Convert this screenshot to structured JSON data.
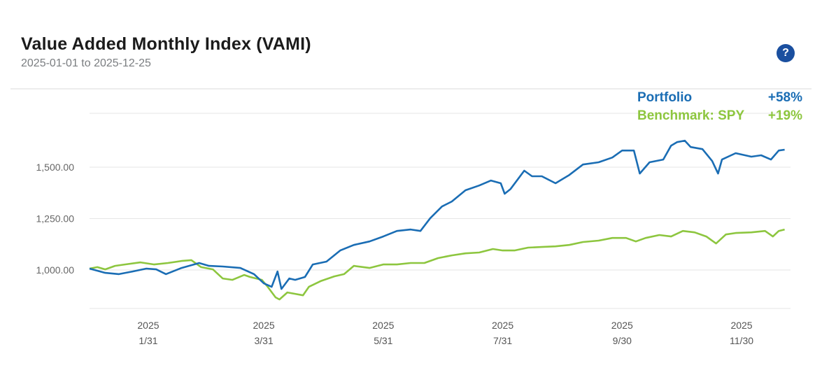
{
  "header": {
    "title": "Value Added Monthly Index (VAMI)",
    "subtitle": "2025-01-01 to 2025-12-25",
    "help_icon": "question-circle-icon",
    "help_label": "?"
  },
  "legend": [
    {
      "name": "Portfolio",
      "value": "+58%",
      "color": "#1a6db4"
    },
    {
      "name": "Benchmark: SPY",
      "value": "+19%",
      "color": "#8dc63f"
    }
  ],
  "chart_data": {
    "type": "line",
    "title": "Value Added Monthly Index (VAMI)",
    "xlabel": "",
    "ylabel": "",
    "x_units": "days since 2025-01-01",
    "xlim": [
      0,
      358
    ],
    "ylim": [
      813,
      1762
    ],
    "grid": true,
    "legend_position": "top-right",
    "yticks": [
      {
        "value": 1000,
        "label": "1,000.00"
      },
      {
        "value": 1250,
        "label": "1,250.00"
      },
      {
        "value": 1500,
        "label": "1,500.00"
      }
    ],
    "xticks": [
      {
        "value": 30,
        "year": "2025",
        "label": "1/31"
      },
      {
        "value": 89,
        "year": "2025",
        "label": "3/31"
      },
      {
        "value": 150,
        "year": "2025",
        "label": "5/31"
      },
      {
        "value": 211,
        "year": "2025",
        "label": "7/31"
      },
      {
        "value": 272,
        "year": "2025",
        "label": "9/30"
      },
      {
        "value": 333,
        "year": "2025",
        "label": "11/30"
      }
    ],
    "series": [
      {
        "name": "Portfolio",
        "color": "#1a6db4",
        "x": [
          0,
          8,
          15,
          22,
          29,
          34,
          39,
          47,
          56,
          61,
          68,
          77,
          84,
          89,
          93,
          96,
          98,
          102,
          105,
          110,
          114,
          121,
          128,
          135,
          143,
          150,
          157,
          164,
          169,
          174,
          180,
          185,
          192,
          199,
          205,
          210,
          212,
          215,
          222,
          226,
          231,
          238,
          245,
          252,
          260,
          267,
          272,
          278,
          281,
          286,
          293,
          297,
          300,
          304,
          307,
          313,
          318,
          321,
          323,
          330,
          338,
          343,
          348,
          352,
          355
        ],
        "y": [
          1007,
          986,
          980,
          993,
          1007,
          1003,
          980,
          1010,
          1034,
          1020,
          1017,
          1010,
          980,
          935,
          918,
          993,
          908,
          959,
          952,
          966,
          1027,
          1041,
          1095,
          1122,
          1139,
          1163,
          1190,
          1197,
          1190,
          1252,
          1309,
          1333,
          1388,
          1411,
          1435,
          1422,
          1371,
          1394,
          1483,
          1456,
          1456,
          1422,
          1462,
          1513,
          1524,
          1547,
          1581,
          1581,
          1469,
          1524,
          1537,
          1605,
          1622,
          1629,
          1598,
          1588,
          1530,
          1469,
          1537,
          1568,
          1551,
          1558,
          1537,
          1581,
          1585
        ]
      },
      {
        "name": "Benchmark: SPY",
        "color": "#8dc63f",
        "x": [
          0,
          4,
          8,
          13,
          18,
          26,
          33,
          40,
          47,
          52,
          57,
          63,
          68,
          73,
          79,
          82,
          88,
          91,
          95,
          97,
          101,
          105,
          109,
          112,
          118,
          125,
          130,
          135,
          143,
          150,
          157,
          164,
          171,
          178,
          185,
          192,
          199,
          206,
          211,
          217,
          224,
          231,
          238,
          245,
          252,
          260,
          267,
          274,
          279,
          284,
          291,
          297,
          303,
          309,
          315,
          320,
          325,
          330,
          338,
          345,
          349,
          352,
          355
        ],
        "y": [
          1007,
          1014,
          1003,
          1020,
          1027,
          1037,
          1027,
          1034,
          1044,
          1048,
          1014,
          1003,
          959,
          952,
          976,
          966,
          952,
          918,
          867,
          857,
          891,
          884,
          877,
          918,
          946,
          969,
          980,
          1020,
          1010,
          1027,
          1027,
          1034,
          1034,
          1058,
          1071,
          1081,
          1085,
          1102,
          1095,
          1095,
          1109,
          1112,
          1115,
          1122,
          1136,
          1143,
          1156,
          1156,
          1139,
          1156,
          1170,
          1163,
          1190,
          1183,
          1163,
          1129,
          1173,
          1180,
          1183,
          1190,
          1163,
          1190,
          1197
        ]
      }
    ]
  }
}
